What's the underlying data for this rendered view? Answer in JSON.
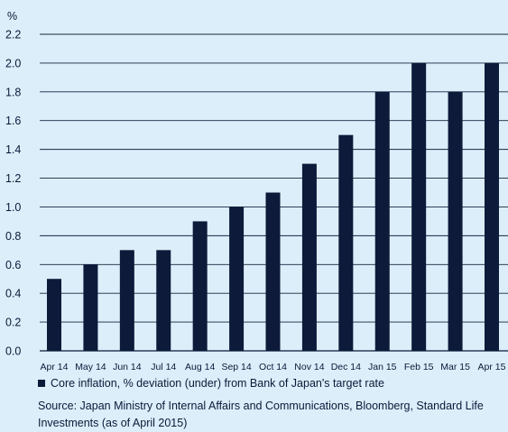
{
  "chart_data": {
    "type": "bar",
    "y_unit_label": "%",
    "categories": [
      "Apr 14",
      "May 14",
      "Jun 14",
      "Jul 14",
      "Aug 14",
      "Sep 14",
      "Oct 14",
      "Nov 14",
      "Dec 14",
      "Jan 15",
      "Feb 15",
      "Mar 15",
      "Apr 15"
    ],
    "series": [
      {
        "name": "Core inflation, % deviation (under) from Bank of Japan's target rate",
        "values": [
          0.5,
          0.6,
          0.7,
          0.7,
          0.9,
          1.0,
          1.1,
          1.3,
          1.5,
          1.8,
          2.0,
          1.8,
          2.0
        ]
      }
    ],
    "ylim": [
      0.0,
      2.2
    ],
    "yticks": [
      "0.0",
      "0.2",
      "0.4",
      "0.6",
      "0.8",
      "1.0",
      "1.2",
      "1.4",
      "1.6",
      "1.8",
      "2.0",
      "2.2"
    ],
    "grid": true,
    "legend_position": "bottom-left",
    "colors": {
      "bar": "#0d1a3a",
      "grid": "#1a2540",
      "background": "#dbeef9"
    }
  },
  "source": {
    "text": "Source: Japan Ministry of Internal Affairs and Communications, Bloomberg, Standard Life Investments (as of April 2015)"
  }
}
